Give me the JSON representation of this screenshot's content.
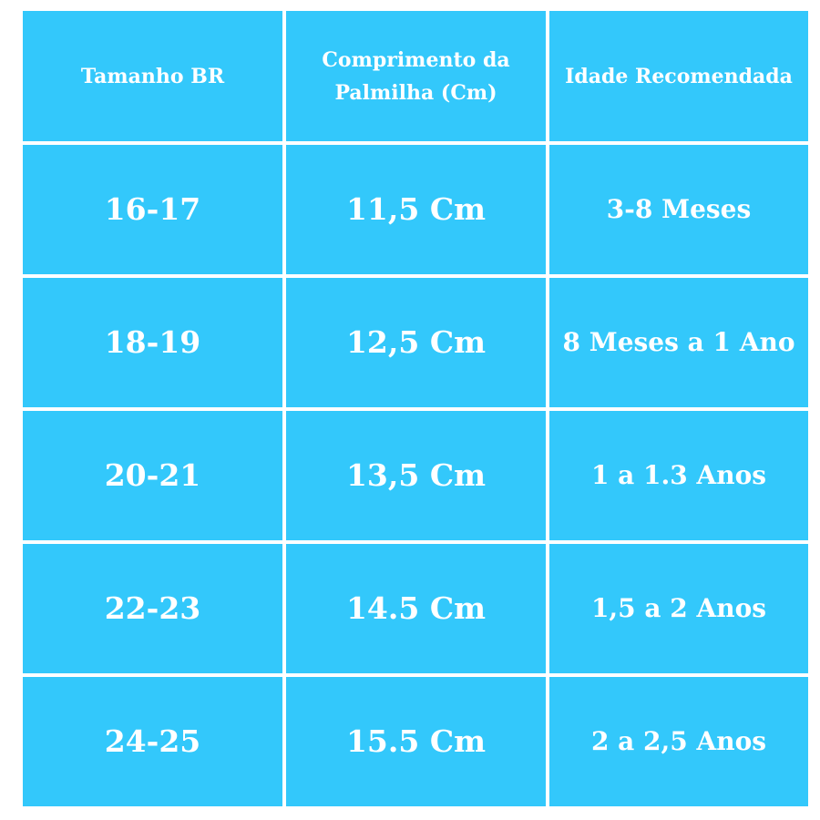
{
  "table": {
    "headers": [
      "Tamanho BR",
      "Comprimento da Palmilha (Cm)",
      "Idade Recomendada"
    ],
    "rows": [
      [
        "16-17",
        "11,5 Cm",
        "3-8 Meses"
      ],
      [
        "18-19",
        "12,5 Cm",
        "8 Meses a 1 Ano"
      ],
      [
        "20-21",
        "13,5 Cm",
        "1 a 1.3 Anos"
      ],
      [
        "22-23",
        "14.5 Cm",
        "1,5 a 2 Anos"
      ],
      [
        "24-25",
        "15.5 Cm",
        "2 a 2,5 Anos"
      ]
    ]
  },
  "colors": {
    "cell": "#33c8fb",
    "text": "#ffffff",
    "background": "#ffffff"
  }
}
